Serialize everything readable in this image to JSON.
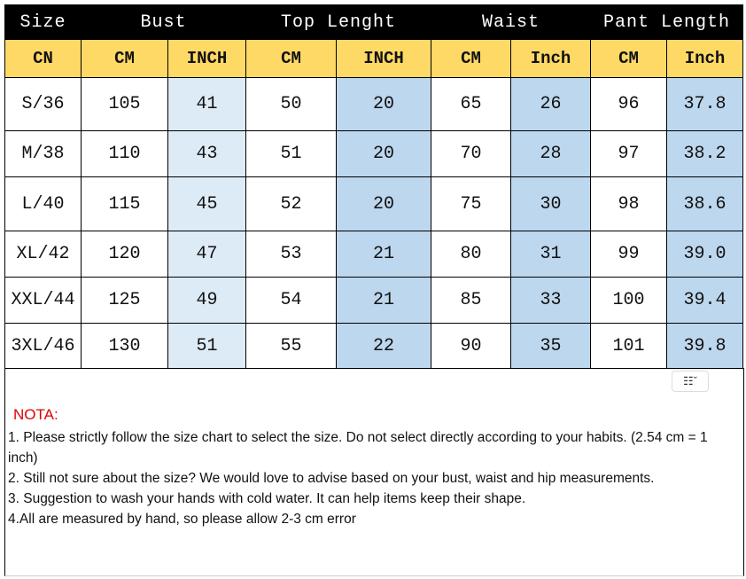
{
  "header": {
    "groups": [
      "Size",
      "Bust",
      "Top Lenght",
      "Waist",
      "Pant Length"
    ]
  },
  "subheader": [
    "CN",
    "CM",
    "INCH",
    "CM",
    "INCH",
    "CM",
    "Inch",
    "CM",
    "Inch"
  ],
  "rows": [
    [
      "S/36",
      "105",
      "41",
      "50",
      "20",
      "65",
      "26",
      "96",
      "37.8"
    ],
    [
      "M/38",
      "110",
      "43",
      "51",
      "20",
      "70",
      "28",
      "97",
      "38.2"
    ],
    [
      "L/40",
      "115",
      "45",
      "52",
      "20",
      "75",
      "30",
      "98",
      "38.6"
    ],
    [
      "XL/42",
      "120",
      "47",
      "53",
      "21",
      "80",
      "31",
      "99",
      "39.0"
    ],
    [
      "XXL/44",
      "125",
      "49",
      "54",
      "21",
      "85",
      "33",
      "100",
      "39.4"
    ],
    [
      "3XL/46",
      "130",
      "51",
      "55",
      "22",
      "90",
      "35",
      "101",
      "39.8"
    ]
  ],
  "notes": {
    "title": "NOTA:",
    "lines": [
      "1. Please strictly follow the size chart to select the size. Do not select directly according to your habits. (2.54 cm = 1 inch)",
      "2. Still not sure about the size? We would love to advise based on your bust, waist and hip measurements.",
      "3. Suggestion to wash your hands with cold water. It can help items keep their shape.",
      "4.All are measured by hand, so please allow 2-3 cm error"
    ]
  },
  "icons": {
    "paste_options": "table-paste-options-icon"
  },
  "colors": {
    "header": "#000000",
    "subheader": "#ffd966",
    "light_blue": "#ddebf7",
    "blue": "#bdd7ee"
  }
}
